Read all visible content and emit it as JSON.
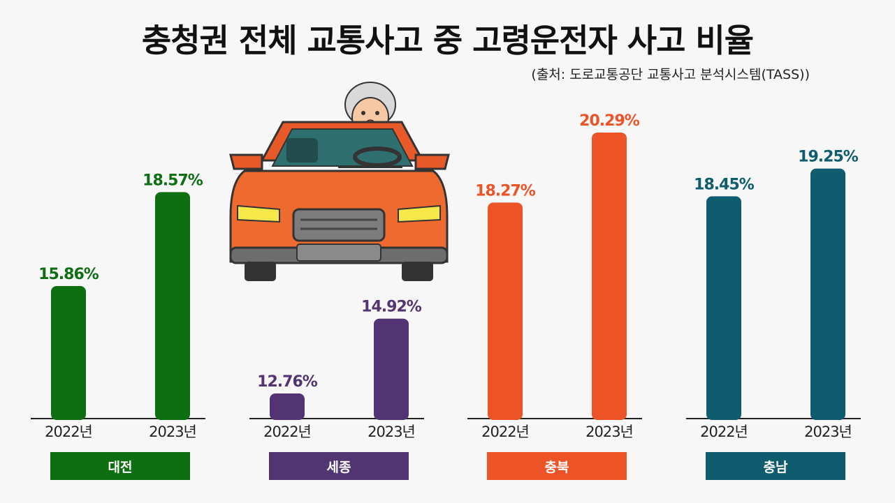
{
  "title": "충청권 전체 교통사고 중 고령운전자 사고 비율",
  "source": "(출처: 도로교통공단 교통사고 분석시스템(TASS))",
  "chart_data": {
    "type": "bar",
    "categories": [
      "2022년",
      "2023년"
    ],
    "unit": "%",
    "groups": [
      {
        "region": "대전",
        "color": "#0e6e12",
        "values": [
          15.86,
          18.57
        ],
        "labels": [
          "15.86%",
          "18.57%"
        ]
      },
      {
        "region": "세종",
        "color": "#523472",
        "values": [
          12.76,
          14.92
        ],
        "labels": [
          "12.76%",
          "14.92%"
        ]
      },
      {
        "region": "충북",
        "color": "#ec5428",
        "values": [
          18.27,
          20.29
        ],
        "labels": [
          "18.27%",
          "20.29%"
        ]
      },
      {
        "region": "충남",
        "color": "#0e5c6e",
        "values": [
          18.45,
          19.25
        ],
        "labels": [
          "18.45%",
          "19.25%"
        ]
      }
    ]
  }
}
